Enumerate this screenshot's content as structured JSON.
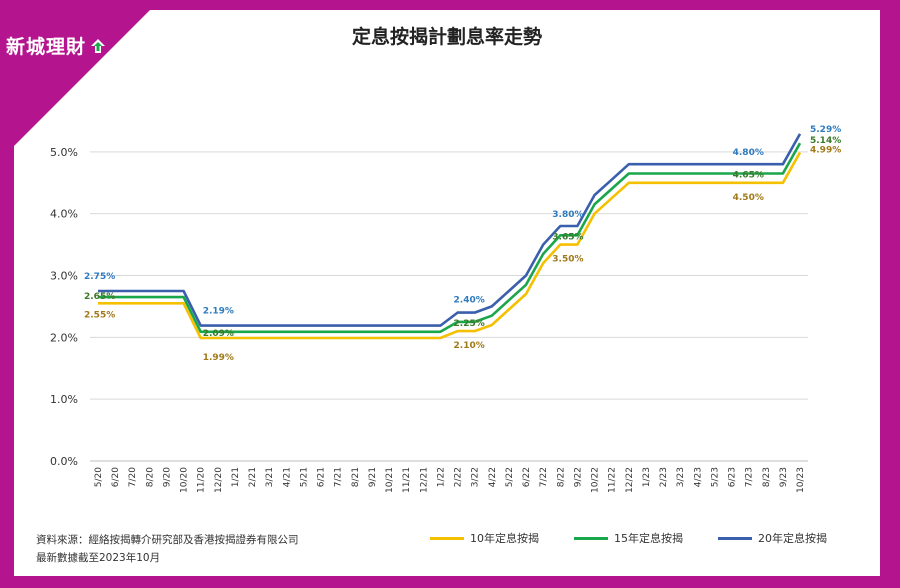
{
  "brand": {
    "logo_text": "新城理財"
  },
  "colors": {
    "frame": "#b5148f",
    "series_10": "#f5c000",
    "series_15": "#1aa64a",
    "series_20": "#3a5fad"
  },
  "chart_data": {
    "type": "line",
    "title": "定息按揭計劃息率走勢",
    "x": [
      "5/20",
      "6/20",
      "7/20",
      "8/20",
      "9/20",
      "10/20",
      "11/20",
      "12/20",
      "1/21",
      "2/21",
      "3/21",
      "4/21",
      "5/21",
      "6/21",
      "7/21",
      "8/21",
      "9/21",
      "10/21",
      "11/21",
      "12/21",
      "1/22",
      "2/22",
      "3/22",
      "4/22",
      "5/22",
      "6/22",
      "7/22",
      "8/22",
      "9/22",
      "10/22",
      "11/22",
      "12/22",
      "1/23",
      "2/23",
      "3/23",
      "4/23",
      "5/23",
      "6/23",
      "7/23",
      "8/23",
      "9/23",
      "10/23"
    ],
    "ylim": [
      0,
      0.06
    ],
    "yticks": [
      "0.0%",
      "1.0%",
      "2.0%",
      "3.0%",
      "4.0%",
      "5.0%"
    ],
    "grid": true,
    "series": [
      {
        "name": "10年定息按揭",
        "color": "#f5c000",
        "values": [
          2.55,
          2.55,
          2.55,
          2.55,
          2.55,
          2.55,
          1.99,
          1.99,
          1.99,
          1.99,
          1.99,
          1.99,
          1.99,
          1.99,
          1.99,
          1.99,
          1.99,
          1.99,
          1.99,
          1.99,
          1.99,
          2.1,
          2.1,
          2.2,
          2.45,
          2.7,
          3.2,
          3.5,
          3.5,
          4.0,
          4.25,
          4.5,
          4.5,
          4.5,
          4.5,
          4.5,
          4.5,
          4.5,
          4.5,
          4.5,
          4.5,
          4.99
        ]
      },
      {
        "name": "15年定息按揭",
        "color": "#1aa64a",
        "values": [
          2.65,
          2.65,
          2.65,
          2.65,
          2.65,
          2.65,
          2.09,
          2.09,
          2.09,
          2.09,
          2.09,
          2.09,
          2.09,
          2.09,
          2.09,
          2.09,
          2.09,
          2.09,
          2.09,
          2.09,
          2.09,
          2.25,
          2.25,
          2.35,
          2.6,
          2.85,
          3.35,
          3.65,
          3.65,
          4.15,
          4.4,
          4.65,
          4.65,
          4.65,
          4.65,
          4.65,
          4.65,
          4.65,
          4.65,
          4.65,
          4.65,
          5.14
        ]
      },
      {
        "name": "20年定息按揭",
        "color": "#3a5fad",
        "values": [
          2.75,
          2.75,
          2.75,
          2.75,
          2.75,
          2.75,
          2.19,
          2.19,
          2.19,
          2.19,
          2.19,
          2.19,
          2.19,
          2.19,
          2.19,
          2.19,
          2.19,
          2.19,
          2.19,
          2.19,
          2.19,
          2.4,
          2.4,
          2.5,
          2.75,
          3.0,
          3.5,
          3.8,
          3.8,
          4.3,
          4.55,
          4.8,
          4.8,
          4.8,
          4.8,
          4.8,
          4.8,
          4.8,
          4.8,
          4.8,
          4.8,
          5.29
        ]
      }
    ],
    "annotations": [
      {
        "series": 2,
        "x": "5/20",
        "text": "2.75%"
      },
      {
        "series": 1,
        "x": "5/20",
        "text": "2.65%"
      },
      {
        "series": 0,
        "x": "5/20",
        "text": "2.55%"
      },
      {
        "series": 2,
        "x": "11/20",
        "text": "2.19%"
      },
      {
        "series": 1,
        "x": "11/20",
        "text": "2.09%"
      },
      {
        "series": 0,
        "x": "11/20",
        "text": "1.99%"
      },
      {
        "series": 2,
        "x": "2/22",
        "text": "2.40%"
      },
      {
        "series": 1,
        "x": "2/22",
        "text": "2.25%"
      },
      {
        "series": 0,
        "x": "2/22",
        "text": "2.10%"
      },
      {
        "series": 2,
        "x": "8/22",
        "text": "3.80%"
      },
      {
        "series": 1,
        "x": "8/22",
        "text": "3.65%"
      },
      {
        "series": 0,
        "x": "8/22",
        "text": "3.50%"
      },
      {
        "series": 2,
        "x": "7/23",
        "text": "4.80%"
      },
      {
        "series": 1,
        "x": "7/23",
        "text": "4.65%"
      },
      {
        "series": 0,
        "x": "7/23",
        "text": "4.50%"
      },
      {
        "series": 2,
        "x": "10/23",
        "text": "5.29%"
      },
      {
        "series": 1,
        "x": "10/23",
        "text": "5.14%"
      },
      {
        "series": 0,
        "x": "10/23",
        "text": "4.99%"
      }
    ]
  },
  "footer": {
    "source": "資料來源：經絡按揭轉介研究部及香港按揭證券有限公司",
    "updated": "最新數據截至2023年10月"
  }
}
